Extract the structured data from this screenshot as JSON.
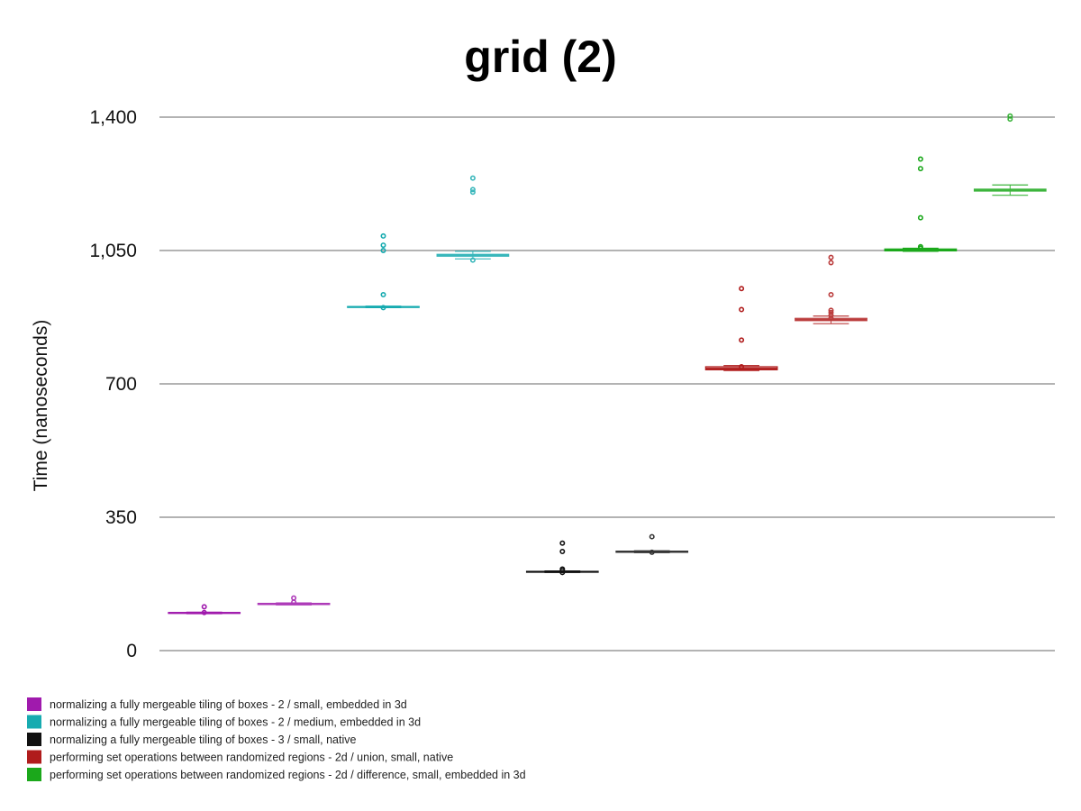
{
  "chart_data": {
    "type": "box",
    "title": "grid (2)",
    "ylabel": "Time (nanoseconds)",
    "ylim": [
      0,
      1400
    ],
    "yticks": [
      0,
      350,
      700,
      1050,
      1400
    ],
    "ytick_labels": [
      "0",
      "350",
      "700",
      "1,050",
      "1,400"
    ],
    "grid": true,
    "legend_position": "bottom-left",
    "series": [
      {
        "name": "normalizing a fully mergeable tiling of boxes - 2 / small, embedded in 3d",
        "color": "#a01aad",
        "boxes": [
          {
            "q1": 98,
            "median": 99,
            "q3": 100,
            "whisker_low": 97,
            "whisker_high": 101,
            "outliers": [
              100,
              115
            ]
          },
          {
            "q1": 121,
            "median": 122,
            "q3": 124,
            "whisker_low": 120,
            "whisker_high": 125,
            "outliers": [
              127,
              138
            ]
          }
        ]
      },
      {
        "name": "normalizing a fully mergeable tiling of boxes - 2 / medium, embedded in 3d",
        "color": "#17abb0",
        "boxes": [
          {
            "q1": 901,
            "median": 902,
            "q3": 903,
            "whisker_low": 900,
            "whisker_high": 904,
            "outliers": [
              900,
              934,
              1050,
              1064,
              1088
            ]
          },
          {
            "q1": 1035,
            "median": 1037,
            "q3": 1040,
            "whisker_low": 1028,
            "whisker_high": 1048,
            "outliers": [
              1025,
              1203,
              1210,
              1240
            ]
          }
        ]
      },
      {
        "name": "normalizing a fully mergeable tiling of boxes - 3 / small, native",
        "color": "#111111",
        "boxes": [
          {
            "q1": 206,
            "median": 207,
            "q3": 208,
            "whisker_low": 205,
            "whisker_high": 209,
            "outliers": [
              205,
              210,
              214,
              260,
              282
            ]
          },
          {
            "q1": 258,
            "median": 259,
            "q3": 261,
            "whisker_low": 257,
            "whisker_high": 262,
            "outliers": [
              258,
              299
            ]
          }
        ]
      },
      {
        "name": "performing set operations between randomized regions - 2d / union, small, native",
        "color": "#b01c1c",
        "boxes": [
          {
            "q1": 737,
            "median": 740,
            "q3": 745,
            "whisker_low": 735,
            "whisker_high": 748,
            "outliers": [
              745,
              815,
              895,
              950
            ]
          },
          {
            "q1": 866,
            "median": 868,
            "q3": 872,
            "whisker_low": 858,
            "whisker_high": 878,
            "outliers": [
              872,
              880,
              887,
              893,
              934,
              1018,
              1032
            ]
          }
        ]
      },
      {
        "name": "performing set operations between randomized regions - 2d / difference, small, embedded in 3d",
        "color": "#1ba81b",
        "boxes": [
          {
            "q1": 1049,
            "median": 1051,
            "q3": 1054,
            "whisker_low": 1048,
            "whisker_high": 1056,
            "outliers": [
              1056,
              1060,
              1136,
              1265,
              1290
            ]
          },
          {
            "q1": 1206,
            "median": 1208,
            "q3": 1211,
            "whisker_low": 1195,
            "whisker_high": 1222,
            "outliers": [
              1395,
              1403
            ]
          }
        ]
      }
    ]
  }
}
